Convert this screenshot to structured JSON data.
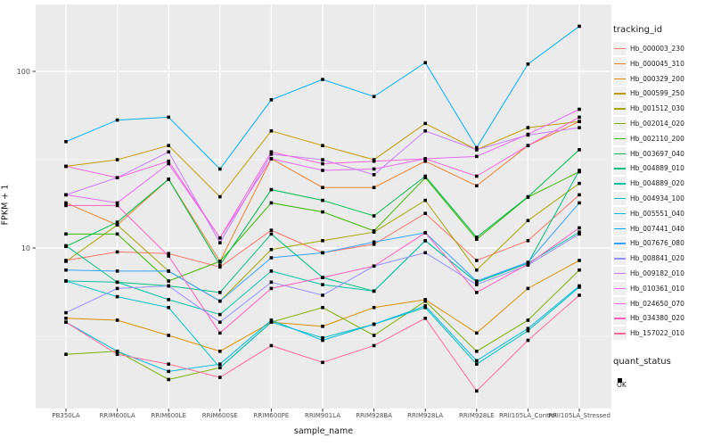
{
  "chart_data": {
    "type": "line",
    "title": "",
    "xlabel": "sample_name",
    "ylabel": "FPKM + 1",
    "y_scale": "log10",
    "ylim": [
      1.23,
      240
    ],
    "y_ticks": [
      {
        "label": "100",
        "value": 100
      },
      {
        "label": "10",
        "value": 10
      }
    ],
    "y_minor_gridlines": [
      31.62,
      3.162
    ],
    "grid": true,
    "panel_bg": "#EBEBEB",
    "grid_color": "#FFFFFF",
    "point_color": "#000000",
    "point_shape": "square",
    "categories": [
      "PB350LA",
      "RRIM600LA",
      "RRIM600LE",
      "RRIM600SE",
      "RRIM600PE",
      "RRIM901LA",
      "RRIM928BA",
      "RRIM928LA",
      "RRIM928LE",
      "RRII105LA_Control",
      "RRII105LA_Stressed"
    ],
    "series": [
      {
        "name": "Hb_000003_230",
        "color": "#F8766D",
        "values": [
          8.5,
          9.5,
          9.3,
          7.8,
          12.6,
          9.4,
          10.5,
          15.7,
          8.5,
          11.0,
          20.0
        ]
      },
      {
        "name": "Hb_000045_310",
        "color": "#EA8331",
        "values": [
          18.0,
          13.5,
          24.5,
          8.4,
          32.0,
          22.0,
          22.0,
          31.0,
          22.5,
          38.0,
          52.0
        ]
      },
      {
        "name": "Hb_000329_200",
        "color": "#D89000",
        "values": [
          4.0,
          3.9,
          3.2,
          2.6,
          3.8,
          3.6,
          4.6,
          5.1,
          3.3,
          5.9,
          8.5
        ]
      },
      {
        "name": "Hb_000599_250",
        "color": "#C09B00",
        "values": [
          29.0,
          31.6,
          38.0,
          19.5,
          46.0,
          38.0,
          31.6,
          50.7,
          36.0,
          48.0,
          52.0
        ]
      },
      {
        "name": "Hb_001512_030",
        "color": "#A3A500",
        "values": [
          8.4,
          13.5,
          7.4,
          5.0,
          9.8,
          11.0,
          12.3,
          18.6,
          7.5,
          14.3,
          23.2
        ]
      },
      {
        "name": "Hb_002014_020",
        "color": "#7CAE00",
        "values": [
          2.5,
          2.6,
          1.8,
          2.1,
          3.8,
          4.6,
          3.2,
          5.0,
          2.6,
          3.9,
          7.5
        ]
      },
      {
        "name": "Hb_002110_200",
        "color": "#39B600",
        "values": [
          12.0,
          12.0,
          6.5,
          8.4,
          18.0,
          16.0,
          12.5,
          25.0,
          11.2,
          19.4,
          27.0
        ]
      },
      {
        "name": "Hb_003697_040",
        "color": "#00BB4E",
        "values": [
          10.2,
          14.0,
          24.5,
          8.0,
          21.4,
          18.6,
          15.2,
          25.5,
          11.5,
          19.5,
          36.0
        ]
      },
      {
        "name": "Hb_004889_010",
        "color": "#00BF7D",
        "values": [
          10.3,
          6.4,
          6.1,
          5.6,
          12.0,
          6.8,
          5.7,
          11.0,
          6.4,
          8.2,
          27.5
        ]
      },
      {
        "name": "Hb_004889_020",
        "color": "#00C1A3",
        "values": [
          6.5,
          6.4,
          5.1,
          4.2,
          7.4,
          6.2,
          5.7,
          11.0,
          6.4,
          8.2,
          12.3
        ]
      },
      {
        "name": "Hb_004934_100",
        "color": "#00BFC4",
        "values": [
          6.5,
          5.3,
          4.6,
          2.1,
          3.8,
          3.1,
          3.7,
          4.6,
          2.2,
          3.4,
          6.0
        ]
      },
      {
        "name": "Hb_005551_040",
        "color": "#00BAE0",
        "values": [
          3.8,
          2.6,
          2.0,
          2.2,
          3.9,
          3.0,
          3.7,
          4.7,
          2.3,
          3.5,
          6.1
        ]
      },
      {
        "name": "Hb_007441_040",
        "color": "#00B0F6",
        "values": [
          40.0,
          53.0,
          55.0,
          28.0,
          69.0,
          90.0,
          72.0,
          112.0,
          37.0,
          110.0,
          180.0
        ]
      },
      {
        "name": "Hb_007676_080",
        "color": "#35A2FF",
        "values": [
          7.5,
          7.4,
          7.4,
          5.0,
          8.8,
          9.4,
          10.8,
          12.2,
          6.5,
          8.3,
          18.0
        ]
      },
      {
        "name": "Hb_008841_020",
        "color": "#9590FF",
        "values": [
          4.3,
          5.9,
          6.1,
          3.8,
          6.4,
          5.4,
          7.9,
          9.4,
          6.2,
          8.0,
          12.0
        ]
      },
      {
        "name": "Hb_009182_010",
        "color": "#C77CFF",
        "values": [
          20.0,
          25.0,
          35.0,
          10.7,
          34.0,
          31.6,
          26.0,
          46.0,
          36.0,
          43.6,
          48.0
        ]
      },
      {
        "name": "Hb_010361_010",
        "color": "#E76BF3",
        "values": [
          20.0,
          18.0,
          30.0,
          11.4,
          32.0,
          27.5,
          28.0,
          32.0,
          33.0,
          44.0,
          61.0
        ]
      },
      {
        "name": "Hb_024650_070",
        "color": "#FA62DB",
        "values": [
          29.0,
          25.0,
          31.0,
          11.4,
          35.0,
          30.0,
          31.0,
          32.0,
          25.5,
          38.0,
          55.0
        ]
      },
      {
        "name": "Hb_034380_020",
        "color": "#FF62BC",
        "values": [
          17.4,
          17.4,
          9.0,
          3.3,
          5.9,
          6.8,
          7.9,
          12.2,
          5.6,
          8.1,
          13.0
        ]
      },
      {
        "name": "Hb_157022_010",
        "color": "#FF6A98",
        "values": [
          3.8,
          2.5,
          2.2,
          1.85,
          2.8,
          2.25,
          2.8,
          4.0,
          1.55,
          3.0,
          5.4
        ]
      }
    ],
    "legend": {
      "title": "tracking_id",
      "position": "right"
    },
    "quant_legend": {
      "title": "quant_status",
      "entries": [
        {
          "label": "OK",
          "marker": "black-square"
        }
      ]
    }
  }
}
